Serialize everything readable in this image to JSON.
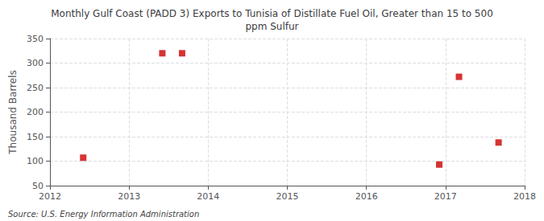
{
  "chart_data": {
    "type": "scatter",
    "title": "Monthly Gulf Coast (PADD 3) Exports to Tunisia of Distillate Fuel Oil, Greater than 15 to 500\nppm Sulfur",
    "ylabel": "Thousand Barrels",
    "source": "Source: U.S. Energy Information Administration",
    "x": [
      2012.42,
      2013.42,
      2013.67,
      2016.92,
      2017.17,
      2017.67
    ],
    "values": [
      107,
      320,
      320,
      93,
      272,
      138
    ],
    "color": "#cc0000",
    "marker": "square",
    "xlim": [
      2012,
      2018
    ],
    "xticks": [
      2012,
      2013,
      2014,
      2015,
      2016,
      2017,
      2018
    ],
    "ylim": [
      50,
      350
    ],
    "yticks": [
      50,
      100,
      150,
      200,
      250,
      300,
      350
    ],
    "grid": true
  }
}
